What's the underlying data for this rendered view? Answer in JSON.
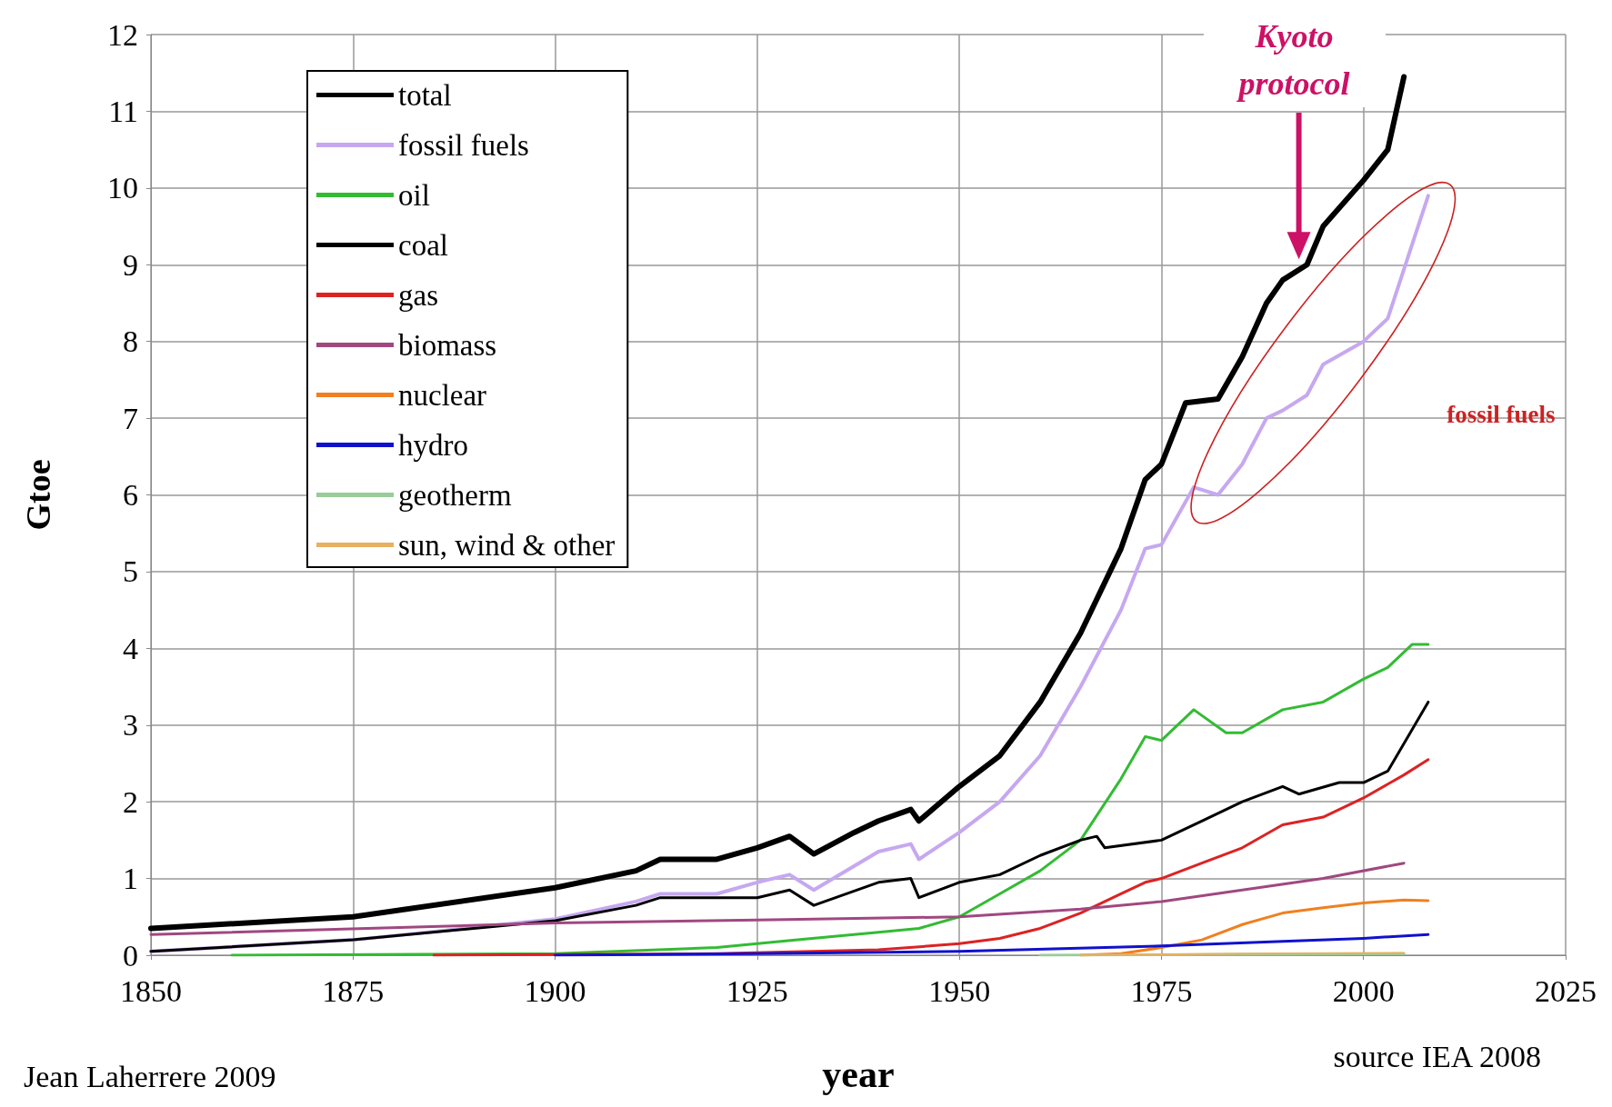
{
  "chart_data": {
    "type": "line",
    "xlabel": "year",
    "ylabel": "Gtoe",
    "xlim": [
      1850,
      2025
    ],
    "xticks": [
      1850,
      1875,
      1900,
      1925,
      1950,
      1975,
      2000,
      2025
    ],
    "ylim": [
      0,
      12
    ],
    "yticks": [
      0,
      1,
      2,
      3,
      4,
      5,
      6,
      7,
      8,
      9,
      10,
      11,
      12
    ],
    "grid": true,
    "legend": "top left",
    "marker": "none",
    "line_style": "solid",
    "annotations": [
      "Kyoto protocol",
      "fossil fuels",
      "Jean Laherrere 2009",
      "source IEA 2008"
    ],
    "series": [
      {
        "name": "total",
        "color": "#000000",
        "x": [
          1850,
          1875,
          1900,
          1910,
          1913,
          1920,
          1925,
          1929,
          1932,
          1937,
          1940,
          1944,
          1945,
          1950,
          1955,
          1960,
          1965,
          1970,
          1973,
          1975,
          1978,
          1982,
          1985,
          1988,
          1990,
          1993,
          1995,
          2000,
          2003,
          2005
        ],
        "values": [
          0.35,
          0.5,
          0.88,
          1.1,
          1.25,
          1.25,
          1.4,
          1.55,
          1.32,
          1.6,
          1.75,
          1.9,
          1.75,
          2.2,
          2.6,
          3.3,
          4.2,
          5.3,
          6.2,
          6.4,
          7.2,
          7.25,
          7.8,
          8.5,
          8.8,
          9.0,
          9.5,
          10.1,
          10.5,
          11.45
        ]
      },
      {
        "name": "fossil fuels",
        "color": "#c6a8f0",
        "x": [
          1850,
          1875,
          1900,
          1910,
          1913,
          1920,
          1925,
          1929,
          1932,
          1940,
          1944,
          1945,
          1950,
          1955,
          1960,
          1965,
          1970,
          1973,
          1975,
          1979,
          1982,
          1985,
          1988,
          1990,
          1993,
          1995,
          2000,
          2003,
          2008
        ],
        "values": [
          0.05,
          0.2,
          0.47,
          0.7,
          0.8,
          0.8,
          0.95,
          1.05,
          0.85,
          1.35,
          1.45,
          1.25,
          1.6,
          2.0,
          2.6,
          3.5,
          4.5,
          5.3,
          5.35,
          6.1,
          6.0,
          6.4,
          7.0,
          7.1,
          7.3,
          7.7,
          8.0,
          8.3,
          9.9
        ]
      },
      {
        "name": "oil",
        "color": "#33bb33",
        "x": [
          1860,
          1900,
          1920,
          1930,
          1940,
          1945,
          1950,
          1955,
          1960,
          1965,
          1970,
          1973,
          1975,
          1979,
          1983,
          1985,
          1990,
          1995,
          2000,
          2003,
          2006,
          2008
        ],
        "values": [
          0,
          0.02,
          0.1,
          0.2,
          0.3,
          0.35,
          0.5,
          0.8,
          1.1,
          1.5,
          2.3,
          2.85,
          2.8,
          3.2,
          2.9,
          2.9,
          3.2,
          3.3,
          3.6,
          3.75,
          4.05,
          4.05
        ]
      },
      {
        "name": "coal",
        "color": "#000000",
        "x": [
          1850,
          1875,
          1900,
          1910,
          1913,
          1920,
          1925,
          1929,
          1932,
          1940,
          1944,
          1945,
          1950,
          1955,
          1960,
          1965,
          1967,
          1968,
          1975,
          1980,
          1985,
          1990,
          1992,
          1997,
          2000,
          2003,
          2008
        ],
        "values": [
          0.05,
          0.2,
          0.45,
          0.65,
          0.75,
          0.75,
          0.75,
          0.85,
          0.65,
          0.95,
          1.0,
          0.75,
          0.95,
          1.05,
          1.3,
          1.5,
          1.55,
          1.4,
          1.5,
          1.75,
          2.0,
          2.2,
          2.1,
          2.25,
          2.25,
          2.4,
          3.3
        ]
      },
      {
        "name": "gas",
        "color": "#dd2222",
        "x": [
          1885,
          1920,
          1940,
          1950,
          1955,
          1960,
          1965,
          1970,
          1973,
          1975,
          1980,
          1985,
          1990,
          1995,
          2000,
          2005,
          2008
        ],
        "values": [
          0,
          0.02,
          0.07,
          0.15,
          0.22,
          0.35,
          0.55,
          0.8,
          0.95,
          1.0,
          1.2,
          1.4,
          1.7,
          1.8,
          2.05,
          2.35,
          2.55
        ]
      },
      {
        "name": "biomass",
        "color": "#a04880",
        "x": [
          1850,
          1900,
          1925,
          1950,
          1965,
          1975,
          1985,
          1995,
          2005
        ],
        "values": [
          0.27,
          0.42,
          0.46,
          0.5,
          0.6,
          0.7,
          0.85,
          1.0,
          1.2
        ]
      },
      {
        "name": "nuclear",
        "color": "#f08020",
        "x": [
          1965,
          1970,
          1975,
          1980,
          1985,
          1990,
          1995,
          2000,
          2005,
          2008
        ],
        "values": [
          0,
          0.02,
          0.1,
          0.2,
          0.4,
          0.55,
          0.62,
          0.68,
          0.72,
          0.71
        ]
      },
      {
        "name": "hydro",
        "color": "#1111cc",
        "x": [
          1900,
          1925,
          1950,
          1975,
          1990,
          2000,
          2008
        ],
        "values": [
          0,
          0.02,
          0.05,
          0.12,
          0.18,
          0.22,
          0.27
        ]
      },
      {
        "name": "geotherm",
        "color": "#99cc99",
        "x": [
          1960,
          1980,
          2005
        ],
        "values": [
          0,
          0.01,
          0.02
        ]
      },
      {
        "name": "sun, wind & other",
        "color": "#e8b060",
        "x": [
          1965,
          1985,
          2005
        ],
        "values": [
          0,
          0.02,
          0.03
        ]
      }
    ]
  }
}
